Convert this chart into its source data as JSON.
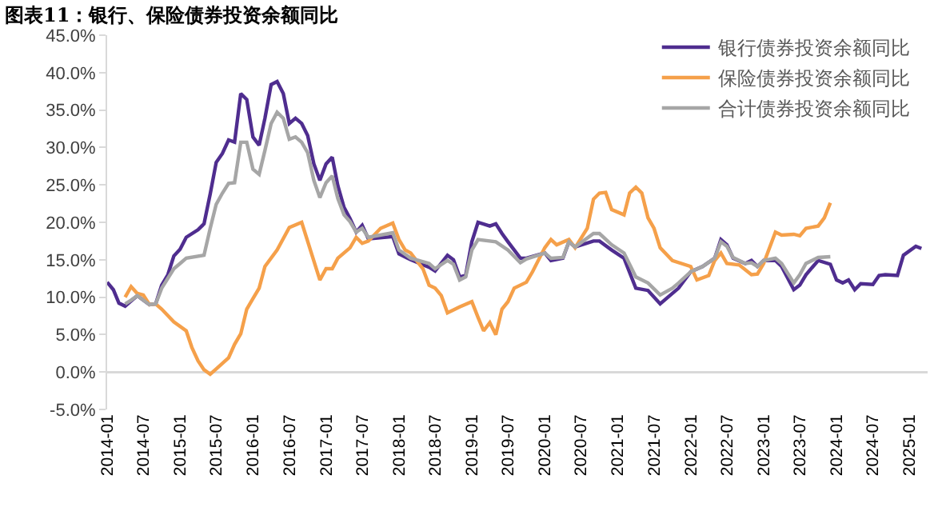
{
  "chart_data": {
    "type": "line",
    "title": "图表11：银行、保险债券投资余额同比",
    "xlim": [
      "2014-01",
      "2025-04"
    ],
    "xticks": [
      "2014-01",
      "2014-07",
      "2015-01",
      "2015-07",
      "2016-01",
      "2016-07",
      "2017-01",
      "2017-07",
      "2018-01",
      "2018-07",
      "2019-01",
      "2019-07",
      "2020-01",
      "2020-07",
      "2021-01",
      "2021-07",
      "2022-01",
      "2022-07",
      "2023-01",
      "2023-07",
      "2024-01",
      "2024-07",
      "2025-01"
    ],
    "ylim": [
      -5,
      45
    ],
    "yticks": [
      {
        "value": -5,
        "label": "-5.0%"
      },
      {
        "value": 0,
        "label": "0.0%"
      },
      {
        "value": 5,
        "label": "5.0%"
      },
      {
        "value": 10,
        "label": "10.0%"
      },
      {
        "value": 15,
        "label": "15.0%"
      },
      {
        "value": 20,
        "label": "20.0%"
      },
      {
        "value": 25,
        "label": "25.0%"
      },
      {
        "value": 30,
        "label": "30.0%"
      },
      {
        "value": 35,
        "label": "35.0%"
      },
      {
        "value": 40,
        "label": "40.0%"
      },
      {
        "value": 45,
        "label": "45.0%"
      }
    ],
    "legend": "top right",
    "series": [
      {
        "name": "银行债券投资余额同比",
        "color": "#4f2d8f",
        "x": [
          "2014-01",
          "2014-02",
          "2014-03",
          "2014-04",
          "2014-05",
          "2014-06",
          "2014-08",
          "2014-09",
          "2014-10",
          "2014-11",
          "2014-12",
          "2015-01",
          "2015-02",
          "2015-04",
          "2015-05",
          "2015-06",
          "2015-07",
          "2015-08",
          "2015-09",
          "2015-10",
          "2015-11",
          "2015-12",
          "2016-01",
          "2016-02",
          "2016-03",
          "2016-04",
          "2016-05",
          "2016-06",
          "2016-07",
          "2016-08",
          "2016-09",
          "2016-10",
          "2016-11",
          "2016-12",
          "2017-01",
          "2017-02",
          "2017-03",
          "2017-04",
          "2017-05",
          "2017-06",
          "2017-07",
          "2017-08",
          "2017-12",
          "2018-01",
          "2018-03",
          "2018-06",
          "2018-07",
          "2018-09",
          "2018-10",
          "2018-11",
          "2018-12",
          "2019-01",
          "2019-02",
          "2019-04",
          "2019-05",
          "2019-06",
          "2019-07",
          "2019-09",
          "2019-10",
          "2020-01",
          "2020-02",
          "2020-04",
          "2020-05",
          "2020-06",
          "2020-09",
          "2020-10",
          "2020-12",
          "2021-02",
          "2021-04",
          "2021-06",
          "2021-08",
          "2021-10",
          "2021-11",
          "2022-01",
          "2022-03",
          "2022-05",
          "2022-06",
          "2022-07",
          "2022-08",
          "2022-10",
          "2022-11",
          "2022-12",
          "2023-01",
          "2023-03",
          "2023-04",
          "2023-06",
          "2023-07",
          "2023-08",
          "2023-10",
          "2023-12",
          "2024-01",
          "2024-02",
          "2024-03",
          "2024-04",
          "2024-05",
          "2024-07",
          "2024-08",
          "2024-09",
          "2024-11",
          "2024-12",
          "2025-02",
          "2025-03"
        ],
        "values": [
          12.0,
          11.0,
          9.2,
          8.8,
          9.5,
          10.2,
          9.0,
          9.1,
          11.6,
          13.0,
          15.5,
          16.4,
          18.0,
          19.0,
          19.8,
          23.8,
          28.0,
          29.2,
          31.0,
          30.7,
          37.2,
          36.4,
          31.4,
          30.3,
          33.9,
          38.4,
          38.8,
          37.2,
          33.2,
          33.9,
          33.2,
          31.6,
          27.8,
          25.6,
          27.8,
          28.7,
          24.9,
          22.0,
          20.5,
          18.7,
          19.6,
          17.8,
          18.1,
          15.8,
          15.0,
          14.0,
          13.5,
          15.6,
          15.0,
          12.7,
          12.9,
          17.4,
          20.0,
          19.5,
          19.8,
          18.5,
          17.4,
          15.2,
          15.2,
          15.9,
          14.9,
          15.2,
          17.4,
          16.7,
          17.5,
          17.5,
          16.3,
          15.2,
          11.2,
          10.9,
          9.1,
          10.5,
          11.2,
          13.4,
          14.1,
          15.2,
          17.7,
          17.0,
          15.2,
          14.5,
          14.9,
          14.1,
          14.9,
          14.9,
          14.1,
          11.0,
          11.6,
          13.0,
          14.9,
          14.4,
          12.3,
          11.9,
          12.3,
          11.0,
          11.8,
          11.7,
          12.9,
          13.0,
          12.9,
          15.6,
          16.8,
          16.5
        ]
      },
      {
        "name": "保险债券投资余额同比",
        "color": "#f5a04a",
        "x": [
          "2014-04",
          "2014-05",
          "2014-06",
          "2014-07",
          "2014-08",
          "2014-09",
          "2014-10",
          "2014-12",
          "2015-02",
          "2015-03",
          "2015-04",
          "2015-05",
          "2015-06",
          "2015-07",
          "2015-09",
          "2015-10",
          "2015-11",
          "2015-12",
          "2016-01",
          "2016-02",
          "2016-03",
          "2016-05",
          "2016-07",
          "2016-09",
          "2016-12",
          "2017-01",
          "2017-02",
          "2017-03",
          "2017-05",
          "2017-06",
          "2017-07",
          "2017-08",
          "2017-10",
          "2017-12",
          "2018-01",
          "2018-02",
          "2018-03",
          "2018-05",
          "2018-06",
          "2018-07",
          "2018-08",
          "2018-09",
          "2018-11",
          "2019-01",
          "2019-02",
          "2019-03",
          "2019-04",
          "2019-05",
          "2019-06",
          "2019-07",
          "2019-08",
          "2019-10",
          "2019-11",
          "2020-01",
          "2020-02",
          "2020-03",
          "2020-05",
          "2020-06",
          "2020-08",
          "2020-09",
          "2020-10",
          "2020-11",
          "2020-12",
          "2021-02",
          "2021-03",
          "2021-04",
          "2021-05",
          "2021-06",
          "2021-07",
          "2021-08",
          "2021-10",
          "2022-01",
          "2022-02",
          "2022-04",
          "2022-05",
          "2022-06",
          "2022-07",
          "2022-09",
          "2022-11",
          "2022-12",
          "2023-01",
          "2023-03",
          "2023-04",
          "2023-06",
          "2023-07",
          "2023-08",
          "2023-10",
          "2023-11",
          "2023-12"
        ],
        "values": [
          10.0,
          11.4,
          10.5,
          10.3,
          9.0,
          9.1,
          8.4,
          6.7,
          5.5,
          3.3,
          1.5,
          0.3,
          -0.3,
          0.4,
          1.9,
          3.7,
          5.1,
          8.4,
          9.8,
          11.2,
          14.1,
          16.3,
          19.3,
          20.0,
          12.3,
          13.8,
          13.8,
          15.2,
          16.6,
          18.0,
          17.2,
          17.5,
          19.2,
          19.9,
          17.7,
          16.3,
          15.9,
          13.8,
          11.6,
          11.2,
          10.2,
          7.9,
          8.7,
          9.4,
          7.3,
          5.5,
          6.6,
          5.0,
          8.4,
          9.4,
          11.2,
          12.0,
          13.4,
          16.6,
          17.7,
          17.0,
          17.7,
          16.6,
          19.2,
          23.1,
          23.9,
          24.0,
          21.7,
          21.0,
          23.9,
          24.7,
          23.9,
          20.6,
          19.2,
          16.6,
          14.9,
          14.1,
          12.3,
          12.9,
          14.9,
          15.9,
          14.5,
          14.3,
          13.0,
          13.1,
          14.5,
          18.7,
          18.3,
          18.4,
          18.2,
          19.2,
          19.5,
          20.6,
          22.6
        ]
      },
      {
        "name": "合计债券投资余额同比",
        "color": "#a6a6a6",
        "x": [
          "2014-04",
          "2014-05",
          "2014-06",
          "2014-08",
          "2014-09",
          "2014-10",
          "2014-12",
          "2015-01",
          "2015-02",
          "2015-05",
          "2015-06",
          "2015-07",
          "2015-08",
          "2015-09",
          "2015-10",
          "2015-11",
          "2015-12",
          "2016-01",
          "2016-02",
          "2016-03",
          "2016-04",
          "2016-05",
          "2016-06",
          "2016-07",
          "2016-08",
          "2016-09",
          "2016-10",
          "2016-11",
          "2016-12",
          "2017-01",
          "2017-02",
          "2017-03",
          "2017-04",
          "2017-05",
          "2017-06",
          "2017-07",
          "2017-08",
          "2017-12",
          "2018-01",
          "2018-03",
          "2018-06",
          "2018-07",
          "2018-09",
          "2018-10",
          "2018-11",
          "2018-12",
          "2019-01",
          "2019-02",
          "2019-05",
          "2019-07",
          "2019-09",
          "2019-10",
          "2020-01",
          "2020-02",
          "2020-04",
          "2020-05",
          "2020-06",
          "2020-09",
          "2020-10",
          "2020-12",
          "2021-02",
          "2021-04",
          "2021-06",
          "2021-08",
          "2021-10",
          "2021-11",
          "2022-01",
          "2022-03",
          "2022-05",
          "2022-06",
          "2022-07",
          "2022-08",
          "2022-10",
          "2022-11",
          "2022-12",
          "2023-01",
          "2023-03",
          "2023-04",
          "2023-06",
          "2023-07",
          "2023-08",
          "2023-10",
          "2023-12"
        ],
        "values": [
          9.1,
          9.6,
          10.2,
          9.0,
          9.1,
          11.2,
          13.8,
          14.5,
          15.2,
          15.6,
          19.2,
          22.4,
          23.9,
          25.2,
          25.3,
          30.7,
          30.7,
          27.1,
          26.4,
          29.6,
          33.2,
          34.7,
          33.9,
          31.1,
          31.4,
          30.7,
          29.3,
          25.6,
          23.3,
          25.3,
          26.2,
          23.2,
          21.0,
          20.1,
          18.7,
          19.2,
          18.0,
          18.6,
          16.3,
          15.2,
          14.5,
          13.8,
          14.9,
          14.4,
          12.3,
          12.7,
          16.3,
          17.7,
          17.4,
          16.3,
          14.6,
          15.1,
          15.9,
          15.2,
          15.3,
          17.4,
          16.7,
          18.5,
          18.5,
          17.0,
          15.9,
          12.7,
          11.9,
          10.3,
          11.2,
          11.9,
          13.4,
          14.1,
          15.2,
          17.4,
          16.8,
          15.3,
          14.5,
          14.6,
          14.1,
          14.9,
          15.2,
          14.5,
          11.9,
          13.0,
          14.5,
          15.3,
          15.4
        ]
      }
    ]
  }
}
